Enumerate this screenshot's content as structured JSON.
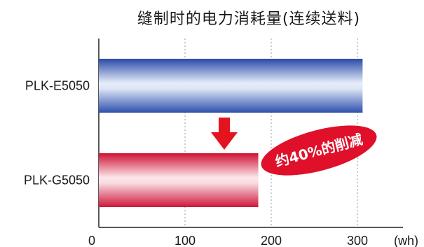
{
  "chart_data": {
    "type": "bar",
    "orientation": "horizontal",
    "title": "缝制时的电力消耗量(连续送料)",
    "categories": [
      "PLK-E5050",
      "PLK-G5050"
    ],
    "values": [
      306,
      185
    ],
    "xlim": [
      0,
      350
    ],
    "xticks": [
      0,
      100,
      200,
      300
    ],
    "xticklabels": [
      "0",
      "100",
      "200",
      "300"
    ],
    "unit_label": "(wh)",
    "grid": true,
    "annotation": "约40%的削减",
    "colors": {
      "PLK-E5050": "#3a5bb5",
      "PLK-G5050": "#d8203a",
      "annotation_fill": "#e0102a",
      "arrow": "#e4141e"
    }
  }
}
